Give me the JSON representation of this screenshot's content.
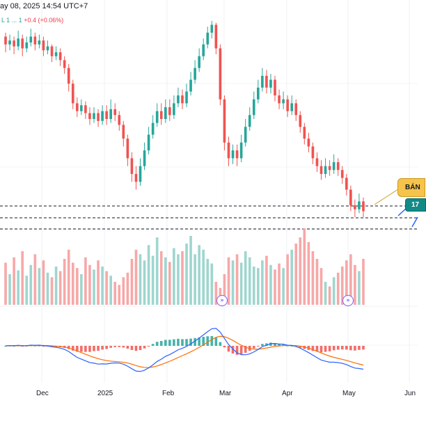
{
  "header": {
    "date_text": "ay 08, 2025 14:54 UTC+7"
  },
  "legend": {
    "partial": "L 1 ... 1",
    "change": "+0.4 (+0.06%)"
  },
  "signal": {
    "label": "BÁN",
    "price_label": "17"
  },
  "colors": {
    "up": "#26a69a",
    "down": "#ef5350",
    "volume_up": "#9fd6cf",
    "volume_down": "#f7a8a8",
    "macd_line": "#2962ff",
    "signal_line": "#ff6d00",
    "callout_sell": "#f6c34b",
    "callout_price": "#138a85"
  },
  "icons": {
    "volume_marker": "double-arrow-icon"
  },
  "chart_data": {
    "type": "candlestick",
    "x_axis": {
      "ticks": [
        "Dec",
        "2025",
        "Feb",
        "Mar",
        "Apr",
        "May",
        "Jun"
      ]
    },
    "grid": true,
    "horizontal_levels": [
      {
        "style": "dashed",
        "relative": "upper"
      },
      {
        "style": "dashed",
        "relative": "middle"
      },
      {
        "style": "dashed",
        "relative": "lower"
      }
    ],
    "candles": [
      [
        0.92,
        0.88,
        0.94,
        0.84
      ],
      [
        0.88,
        0.9,
        0.93,
        0.85
      ],
      [
        0.9,
        0.87,
        0.92,
        0.83
      ],
      [
        0.87,
        0.91,
        0.95,
        0.85
      ],
      [
        0.91,
        0.86,
        0.93,
        0.82
      ],
      [
        0.86,
        0.89,
        0.92,
        0.84
      ],
      [
        0.89,
        0.92,
        0.96,
        0.87
      ],
      [
        0.92,
        0.88,
        0.94,
        0.85
      ],
      [
        0.88,
        0.9,
        0.93,
        0.86
      ],
      [
        0.9,
        0.85,
        0.92,
        0.82
      ],
      [
        0.85,
        0.87,
        0.9,
        0.83
      ],
      [
        0.87,
        0.82,
        0.88,
        0.79
      ],
      [
        0.82,
        0.84,
        0.87,
        0.8
      ],
      [
        0.84,
        0.8,
        0.86,
        0.77
      ],
      [
        0.8,
        0.76,
        0.82,
        0.73
      ],
      [
        0.76,
        0.68,
        0.78,
        0.64
      ],
      [
        0.68,
        0.58,
        0.7,
        0.55
      ],
      [
        0.58,
        0.54,
        0.61,
        0.51
      ],
      [
        0.54,
        0.57,
        0.6,
        0.52
      ],
      [
        0.57,
        0.53,
        0.59,
        0.5
      ],
      [
        0.53,
        0.5,
        0.56,
        0.47
      ],
      [
        0.5,
        0.53,
        0.56,
        0.48
      ],
      [
        0.53,
        0.49,
        0.55,
        0.46
      ],
      [
        0.49,
        0.54,
        0.57,
        0.47
      ],
      [
        0.54,
        0.5,
        0.57,
        0.47
      ],
      [
        0.5,
        0.55,
        0.6,
        0.48
      ],
      [
        0.55,
        0.52,
        0.58,
        0.49
      ],
      [
        0.52,
        0.47,
        0.54,
        0.44
      ],
      [
        0.47,
        0.4,
        0.49,
        0.36
      ],
      [
        0.4,
        0.3,
        0.42,
        0.26
      ],
      [
        0.3,
        0.22,
        0.33,
        0.18
      ],
      [
        0.22,
        0.18,
        0.26,
        0.14
      ],
      [
        0.18,
        0.26,
        0.3,
        0.16
      ],
      [
        0.26,
        0.34,
        0.38,
        0.24
      ],
      [
        0.34,
        0.42,
        0.46,
        0.32
      ],
      [
        0.42,
        0.48,
        0.52,
        0.4
      ],
      [
        0.48,
        0.54,
        0.58,
        0.46
      ],
      [
        0.54,
        0.5,
        0.58,
        0.47
      ],
      [
        0.5,
        0.56,
        0.6,
        0.48
      ],
      [
        0.56,
        0.52,
        0.6,
        0.49
      ],
      [
        0.52,
        0.58,
        0.62,
        0.5
      ],
      [
        0.58,
        0.62,
        0.66,
        0.56
      ],
      [
        0.62,
        0.58,
        0.65,
        0.55
      ],
      [
        0.58,
        0.64,
        0.68,
        0.56
      ],
      [
        0.64,
        0.7,
        0.74,
        0.62
      ],
      [
        0.7,
        0.76,
        0.8,
        0.68
      ],
      [
        0.76,
        0.82,
        0.86,
        0.74
      ],
      [
        0.82,
        0.88,
        0.91,
        0.8
      ],
      [
        0.88,
        0.94,
        0.97,
        0.86
      ],
      [
        0.94,
        0.98,
        1.0,
        0.91
      ],
      [
        0.98,
        0.86,
        0.99,
        0.83
      ],
      [
        0.86,
        0.6,
        0.88,
        0.57
      ],
      [
        0.6,
        0.38,
        0.62,
        0.34
      ],
      [
        0.38,
        0.3,
        0.41,
        0.26
      ],
      [
        0.3,
        0.34,
        0.37,
        0.27
      ],
      [
        0.34,
        0.3,
        0.37,
        0.26
      ],
      [
        0.3,
        0.38,
        0.42,
        0.28
      ],
      [
        0.38,
        0.46,
        0.5,
        0.36
      ],
      [
        0.46,
        0.52,
        0.56,
        0.44
      ],
      [
        0.52,
        0.6,
        0.64,
        0.5
      ],
      [
        0.6,
        0.66,
        0.7,
        0.58
      ],
      [
        0.66,
        0.72,
        0.76,
        0.64
      ],
      [
        0.72,
        0.66,
        0.75,
        0.63
      ],
      [
        0.66,
        0.7,
        0.73,
        0.63
      ],
      [
        0.7,
        0.62,
        0.72,
        0.59
      ],
      [
        0.62,
        0.58,
        0.65,
        0.55
      ],
      [
        0.58,
        0.6,
        0.64,
        0.55
      ],
      [
        0.6,
        0.54,
        0.62,
        0.51
      ],
      [
        0.54,
        0.58,
        0.62,
        0.52
      ],
      [
        0.58,
        0.52,
        0.6,
        0.49
      ],
      [
        0.52,
        0.46,
        0.54,
        0.43
      ],
      [
        0.46,
        0.4,
        0.48,
        0.37
      ],
      [
        0.4,
        0.36,
        0.43,
        0.33
      ],
      [
        0.36,
        0.3,
        0.38,
        0.27
      ],
      [
        0.3,
        0.26,
        0.33,
        0.23
      ],
      [
        0.26,
        0.22,
        0.29,
        0.19
      ],
      [
        0.22,
        0.26,
        0.3,
        0.2
      ],
      [
        0.26,
        0.24,
        0.29,
        0.21
      ],
      [
        0.24,
        0.28,
        0.32,
        0.22
      ],
      [
        0.28,
        0.24,
        0.3,
        0.21
      ],
      [
        0.24,
        0.2,
        0.26,
        0.17
      ],
      [
        0.2,
        0.14,
        0.22,
        0.11
      ],
      [
        0.14,
        0.06,
        0.16,
        0.03
      ],
      [
        0.06,
        0.04,
        0.09,
        0.0
      ],
      [
        0.04,
        0.08,
        0.12,
        0.02
      ],
      [
        0.08,
        0.03,
        0.1,
        0.0
      ]
    ],
    "volume": [
      0.55,
      0.4,
      0.62,
      0.45,
      0.7,
      0.38,
      0.52,
      0.66,
      0.48,
      0.58,
      0.42,
      0.36,
      0.5,
      0.44,
      0.6,
      0.72,
      0.55,
      0.48,
      0.4,
      0.62,
      0.52,
      0.46,
      0.58,
      0.5,
      0.44,
      0.38,
      0.3,
      0.26,
      0.36,
      0.42,
      0.6,
      0.72,
      0.66,
      0.58,
      0.78,
      0.64,
      0.88,
      0.7,
      0.62,
      0.56,
      0.74,
      0.66,
      0.7,
      0.8,
      0.9,
      0.66,
      0.78,
      0.72,
      0.6,
      0.54,
      0.3,
      0.22,
      0.4,
      0.62,
      0.58,
      0.66,
      0.55,
      0.7,
      0.62,
      0.5,
      0.48,
      0.58,
      0.64,
      0.52,
      0.46,
      0.54,
      0.48,
      0.66,
      0.72,
      0.8,
      0.88,
      1.0,
      0.82,
      0.7,
      0.6,
      0.48,
      0.3,
      0.24,
      0.36,
      0.42,
      0.5,
      0.58,
      0.66,
      0.52,
      0.44,
      0.6
    ]
  }
}
